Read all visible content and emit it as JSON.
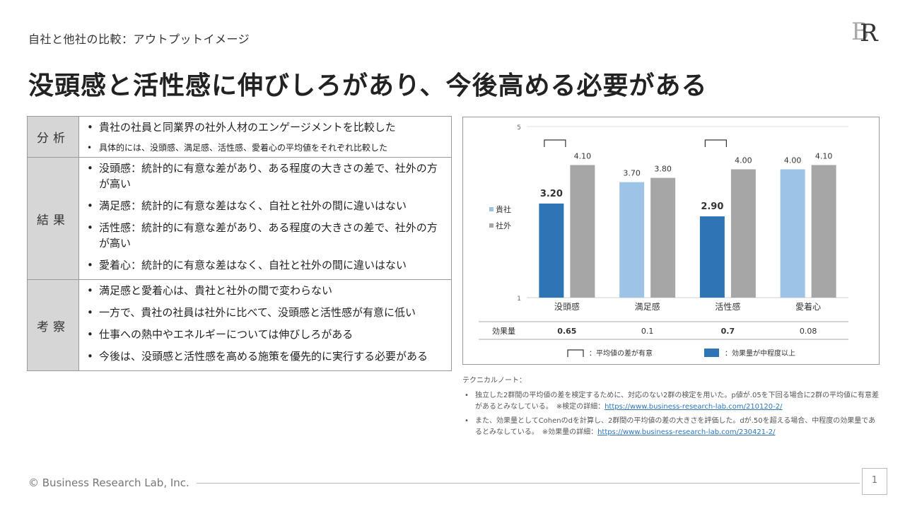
{
  "header": {
    "subtitle": "自社と他社の比較：アウトプットイメージ",
    "title": "没頭感と活性感に伸びしろがあり、今後高める必要がある"
  },
  "logo": {
    "letters": "BR"
  },
  "summary": {
    "rows": [
      {
        "heading": "分析",
        "items": [
          {
            "text": "貴社の社員と同業界の社外人材のエンゲージメントを比較した",
            "small": false
          },
          {
            "text": "具体的には、没頭感、満足感、活性感、愛着心の平均値をそれぞれ比較した",
            "small": true
          }
        ]
      },
      {
        "heading": "結果",
        "items": [
          {
            "text": "没頭感：統計的に有意な差があり、ある程度の大きさの差で、社外の方が高い",
            "small": false
          },
          {
            "text": "満足感：統計的に有意な差はなく、自社と社外の間に違いはない",
            "small": false
          },
          {
            "text": "活性感：統計的に有意な差があり、ある程度の大きさの差で、社外の方が高い",
            "small": false
          },
          {
            "text": "愛着心：統計的に有意な差はなく、自社と社外の間に違いはない",
            "small": false
          }
        ]
      },
      {
        "heading": "考察",
        "items": [
          {
            "text": "満足感と愛着心は、貴社と社外の間で変わらない",
            "small": false
          },
          {
            "text": "一方で、貴社の社員は社外に比べて、没頭感と活性感が有意に低い",
            "small": false
          },
          {
            "text": "仕事への熱中やエネルギーについては伸びしろがある",
            "small": false
          },
          {
            "text": "今後は、没頭感と活性感を高める施策を優先的に実行する必要がある",
            "small": false
          }
        ]
      }
    ]
  },
  "chart_data": {
    "type": "bar",
    "categories": [
      "没頭感",
      "満足感",
      "活性感",
      "愛着心"
    ],
    "series": [
      {
        "name": "貴社",
        "values": [
          3.2,
          3.7,
          2.9,
          4.0
        ],
        "value_labels": [
          "3.20",
          "3.70",
          "2.90",
          "4.00"
        ]
      },
      {
        "name": "社外",
        "values": [
          4.1,
          3.8,
          4.0,
          4.1
        ],
        "value_labels": [
          "4.10",
          "3.80",
          "4.00",
          "4.10"
        ]
      }
    ],
    "ylim": [
      1,
      5
    ],
    "yticks": [
      "1",
      "5"
    ],
    "significant": [
      true,
      false,
      true,
      false
    ],
    "effect_size_label": "効果量",
    "effect_sizes": [
      "0.65",
      "0.1",
      "0.7",
      "0.08"
    ],
    "medium_effect": [
      true,
      false,
      true,
      false
    ],
    "colors": {
      "self_highlight": "#2e75b6",
      "self_normal": "#9dc3e6",
      "other": "#a6a6a6",
      "legend_self": "#9dc3e6",
      "legend_other": "#a6a6a6"
    },
    "legend_position": "left",
    "footer_legend": {
      "bracket_label": "：平均値の差が有意",
      "effect_label": "：効果量が中程度以上"
    },
    "grid": false
  },
  "tech": {
    "header": "テクニカルノート：",
    "notes": [
      {
        "text": "独立した2群間の平均値の差を検定するために、対応のない2群の検定を用いた。p値が.05を下回る場合に2群の平均値に有意差があるとみなしている。　※検定の詳細：",
        "link": "https://www.business-research-lab.com/210120-2/"
      },
      {
        "text": "また、効果量としてCohenのdを計算し、2群間の平均値の差の大きさを評価した。dが.50を超える場合、中程度の効果量であるとみなしている。　※効果量の詳細：",
        "link": "https://www.business-research-lab.com/230421-2/"
      }
    ]
  },
  "footer": {
    "copyright": "© Business Research Lab, Inc.",
    "page": "1"
  }
}
